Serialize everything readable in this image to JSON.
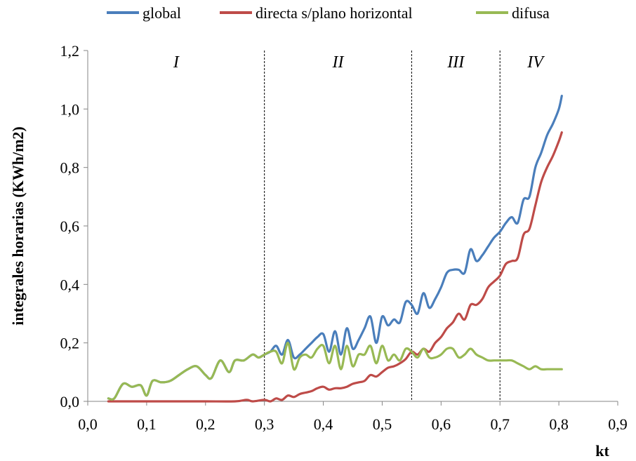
{
  "chart_data": {
    "type": "line",
    "title": "",
    "xlabel": "kt",
    "ylabel": "integrales horarias (KWh/m2)",
    "xlim": [
      0.0,
      0.9
    ],
    "ylim": [
      0.0,
      1.2
    ],
    "xticks": [
      "0,0",
      "0,1",
      "0,2",
      "0,3",
      "0,4",
      "0,5",
      "0,6",
      "0,7",
      "0,8",
      "0,9"
    ],
    "yticks": [
      "0,0",
      "0,2",
      "0,4",
      "0,6",
      "0,8",
      "1,0",
      "1,2"
    ],
    "legend_position": "top",
    "grid": false,
    "region_boundaries": [
      0.3,
      0.55,
      0.7
    ],
    "regions": [
      {
        "label": "I",
        "x": 0.15
      },
      {
        "label": "II",
        "x": 0.425
      },
      {
        "label": "III",
        "x": 0.625
      },
      {
        "label": "IV",
        "x": 0.76
      }
    ],
    "series": [
      {
        "name": "global",
        "color": "#4A7EBB",
        "x": [
          0.035,
          0.045,
          0.06,
          0.075,
          0.09,
          0.1,
          0.11,
          0.125,
          0.14,
          0.155,
          0.17,
          0.185,
          0.2,
          0.21,
          0.225,
          0.24,
          0.25,
          0.265,
          0.28,
          0.29,
          0.3,
          0.31,
          0.32,
          0.33,
          0.34,
          0.35,
          0.36,
          0.37,
          0.38,
          0.39,
          0.4,
          0.41,
          0.42,
          0.43,
          0.44,
          0.45,
          0.46,
          0.47,
          0.48,
          0.49,
          0.5,
          0.51,
          0.52,
          0.53,
          0.54,
          0.55,
          0.56,
          0.57,
          0.58,
          0.59,
          0.6,
          0.61,
          0.62,
          0.63,
          0.64,
          0.65,
          0.66,
          0.67,
          0.68,
          0.69,
          0.7,
          0.71,
          0.72,
          0.73,
          0.74,
          0.75,
          0.76,
          0.77,
          0.78,
          0.79,
          0.8,
          0.805
        ],
        "values": [
          0.01,
          0.01,
          0.06,
          0.05,
          0.055,
          0.02,
          0.07,
          0.065,
          0.07,
          0.09,
          0.11,
          0.12,
          0.09,
          0.08,
          0.14,
          0.1,
          0.14,
          0.14,
          0.16,
          0.15,
          0.16,
          0.17,
          0.19,
          0.16,
          0.21,
          0.15,
          0.16,
          0.18,
          0.2,
          0.22,
          0.23,
          0.17,
          0.24,
          0.16,
          0.25,
          0.18,
          0.21,
          0.25,
          0.29,
          0.2,
          0.29,
          0.26,
          0.28,
          0.27,
          0.34,
          0.33,
          0.3,
          0.37,
          0.32,
          0.35,
          0.39,
          0.44,
          0.45,
          0.45,
          0.44,
          0.52,
          0.48,
          0.5,
          0.53,
          0.56,
          0.58,
          0.61,
          0.63,
          0.61,
          0.69,
          0.7,
          0.8,
          0.85,
          0.91,
          0.95,
          1.0,
          1.045
        ]
      },
      {
        "name": "directa s/plano horizontal",
        "color": "#BE4B48",
        "x": [
          0.035,
          0.05,
          0.1,
          0.15,
          0.2,
          0.25,
          0.27,
          0.28,
          0.3,
          0.31,
          0.32,
          0.33,
          0.34,
          0.35,
          0.36,
          0.37,
          0.38,
          0.39,
          0.4,
          0.41,
          0.42,
          0.43,
          0.44,
          0.45,
          0.46,
          0.47,
          0.48,
          0.49,
          0.5,
          0.51,
          0.52,
          0.53,
          0.54,
          0.55,
          0.56,
          0.57,
          0.58,
          0.59,
          0.6,
          0.61,
          0.62,
          0.63,
          0.64,
          0.65,
          0.66,
          0.67,
          0.68,
          0.69,
          0.7,
          0.71,
          0.72,
          0.73,
          0.74,
          0.75,
          0.76,
          0.77,
          0.78,
          0.79,
          0.8,
          0.805
        ],
        "values": [
          0.0,
          0.0,
          0.0,
          0.0,
          0.0,
          0.0,
          0.005,
          0.0,
          0.005,
          0.0,
          0.01,
          0.005,
          0.02,
          0.015,
          0.025,
          0.03,
          0.035,
          0.045,
          0.05,
          0.04,
          0.045,
          0.045,
          0.05,
          0.06,
          0.065,
          0.07,
          0.09,
          0.085,
          0.1,
          0.115,
          0.12,
          0.13,
          0.145,
          0.17,
          0.16,
          0.18,
          0.17,
          0.2,
          0.22,
          0.25,
          0.27,
          0.3,
          0.28,
          0.33,
          0.33,
          0.35,
          0.39,
          0.41,
          0.43,
          0.47,
          0.48,
          0.49,
          0.57,
          0.59,
          0.67,
          0.75,
          0.8,
          0.84,
          0.89,
          0.92
        ]
      },
      {
        "name": "difusa",
        "color": "#98B954",
        "x": [
          0.035,
          0.045,
          0.06,
          0.075,
          0.09,
          0.1,
          0.11,
          0.125,
          0.14,
          0.155,
          0.17,
          0.185,
          0.2,
          0.21,
          0.225,
          0.24,
          0.25,
          0.265,
          0.28,
          0.29,
          0.3,
          0.31,
          0.32,
          0.33,
          0.34,
          0.35,
          0.36,
          0.37,
          0.38,
          0.39,
          0.4,
          0.41,
          0.42,
          0.43,
          0.44,
          0.45,
          0.46,
          0.47,
          0.48,
          0.49,
          0.5,
          0.51,
          0.52,
          0.53,
          0.54,
          0.55,
          0.56,
          0.57,
          0.58,
          0.59,
          0.6,
          0.61,
          0.62,
          0.63,
          0.64,
          0.65,
          0.66,
          0.67,
          0.68,
          0.69,
          0.7,
          0.71,
          0.72,
          0.73,
          0.74,
          0.75,
          0.76,
          0.77,
          0.78,
          0.79,
          0.8,
          0.805
        ],
        "values": [
          0.01,
          0.01,
          0.06,
          0.05,
          0.055,
          0.02,
          0.07,
          0.065,
          0.07,
          0.09,
          0.11,
          0.12,
          0.09,
          0.08,
          0.14,
          0.1,
          0.14,
          0.14,
          0.16,
          0.15,
          0.16,
          0.17,
          0.17,
          0.13,
          0.2,
          0.11,
          0.15,
          0.16,
          0.15,
          0.18,
          0.19,
          0.13,
          0.19,
          0.11,
          0.19,
          0.12,
          0.16,
          0.16,
          0.19,
          0.13,
          0.19,
          0.14,
          0.16,
          0.14,
          0.18,
          0.17,
          0.15,
          0.18,
          0.15,
          0.15,
          0.16,
          0.18,
          0.18,
          0.15,
          0.16,
          0.18,
          0.16,
          0.15,
          0.14,
          0.14,
          0.14,
          0.14,
          0.14,
          0.13,
          0.12,
          0.11,
          0.12,
          0.11,
          0.11,
          0.11,
          0.11,
          0.11
        ]
      }
    ]
  }
}
